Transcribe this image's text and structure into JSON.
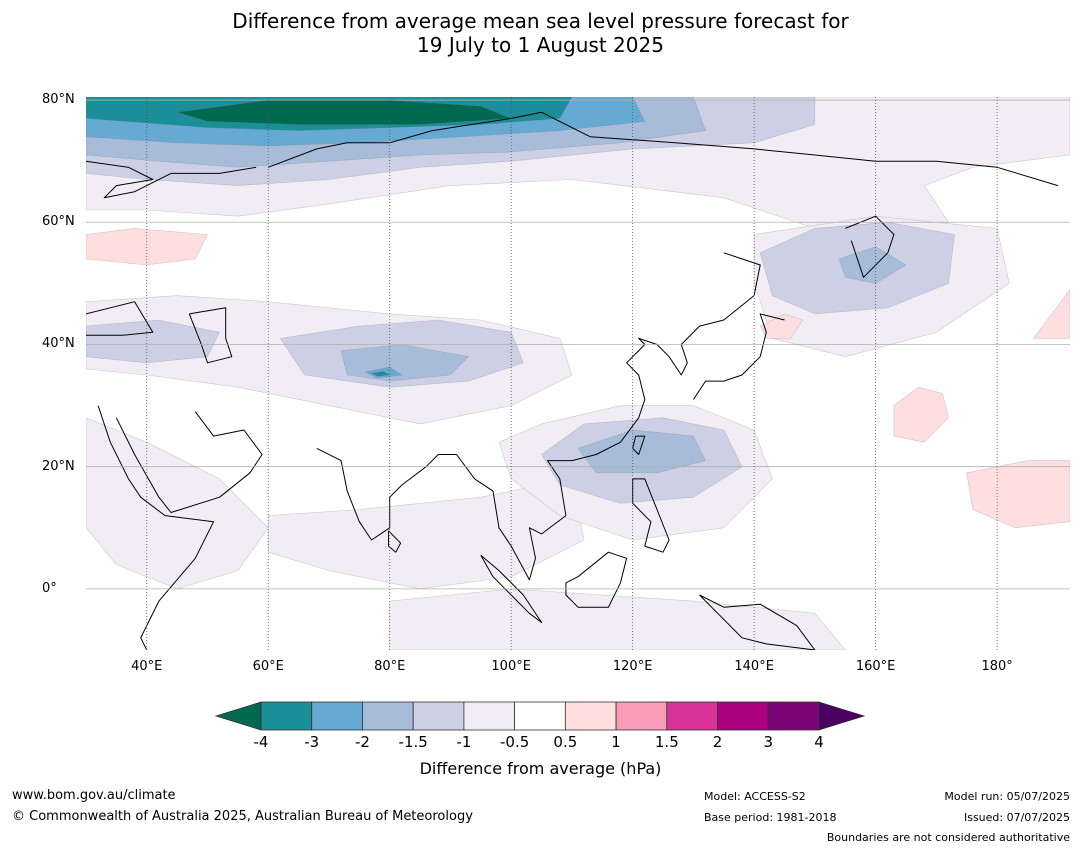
{
  "title": {
    "line1": "Difference from average mean sea level pressure forecast for",
    "line2": "19 July to 1 August 2025"
  },
  "map": {
    "lon_range": [
      30,
      192
    ],
    "lat_range": [
      -10,
      80.5
    ],
    "lat_ticks": [
      {
        "lat": 80,
        "label": "80°N"
      },
      {
        "lat": 60,
        "label": "60°N"
      },
      {
        "lat": 40,
        "label": "40°N"
      },
      {
        "lat": 20,
        "label": "20°N"
      },
      {
        "lat": 0,
        "label": "0°"
      }
    ],
    "lon_ticks": [
      {
        "lon": 40,
        "label": "40°E"
      },
      {
        "lon": 60,
        "label": "60°E"
      },
      {
        "lon": 80,
        "label": "80°E"
      },
      {
        "lon": 100,
        "label": "100°E"
      },
      {
        "lon": 120,
        "label": "120°E"
      },
      {
        "lon": 140,
        "label": "140°E"
      },
      {
        "lon": 160,
        "label": "160°E"
      },
      {
        "lon": 180,
        "label": "180°"
      }
    ],
    "grid": true
  },
  "colorbar": {
    "label": "Difference from average (hPa)",
    "ticks": [
      "-4",
      "-3",
      "-2",
      "-1.5",
      "-1",
      "-0.5",
      "0.5",
      "1",
      "1.5",
      "2",
      "3",
      "4"
    ],
    "colors": {
      "below": "#01694f",
      "bins": [
        "#1b8f98",
        "#66a9d2",
        "#a6bcd8",
        "#cdd0e4",
        "#f2ecf5",
        "#ffffff",
        "#fedede",
        "#f99cb7",
        "#d9339a",
        "#ac0181",
        "#7b0576"
      ],
      "above": "#4a0060"
    }
  },
  "footer": {
    "website": "www.bom.gov.au/climate",
    "copyright": "© Commonwealth of Australia 2025, Australian Bureau of Meteorology",
    "model": "Model: ACCESS-S2",
    "base_period": "Base period: 1981-2018",
    "model_run": "Model run: 05/07/2025",
    "issued": "Issued: 07/07/2025",
    "disclaimer": "Boundaries are not considered authoritative"
  }
}
